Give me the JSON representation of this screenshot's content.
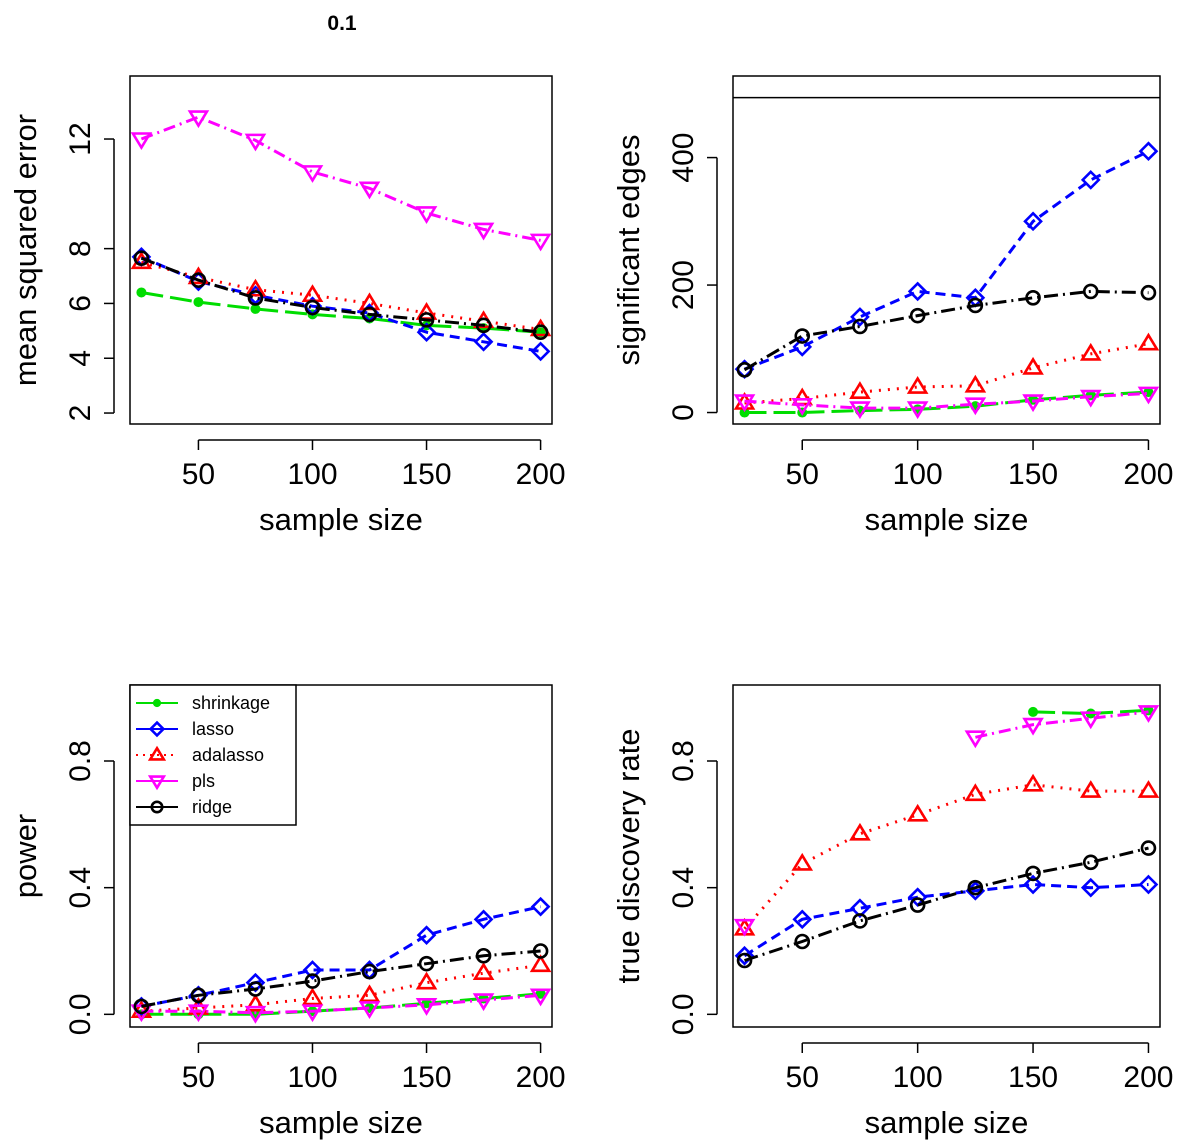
{
  "figure_title": "0.1",
  "colors": {
    "shrinkage": "#00dd00",
    "lasso": "#0000ff",
    "adalasso": "#ff0000",
    "pls": "#ff00ff",
    "ridge": "#000000"
  },
  "chart_data": [
    {
      "id": "mse",
      "type": "line",
      "title": "",
      "xlabel": "sample size",
      "ylabel": "mean squared error",
      "xlim": [
        20,
        205
      ],
      "ylim": [
        1.6,
        14.3
      ],
      "xticks": [
        50,
        100,
        150,
        200
      ],
      "yticks": [
        2,
        4,
        6,
        8,
        12
      ],
      "x": [
        25,
        50,
        75,
        100,
        125,
        150,
        175,
        200
      ],
      "series": [
        {
          "key": "shrinkage",
          "values": [
            6.4,
            6.05,
            5.8,
            5.6,
            5.45,
            5.2,
            5.1,
            4.95
          ]
        },
        {
          "key": "lasso",
          "values": [
            7.7,
            6.8,
            6.3,
            5.9,
            5.65,
            4.95,
            4.6,
            4.25
          ]
        },
        {
          "key": "adalasso",
          "values": [
            7.5,
            6.95,
            6.5,
            6.3,
            6.0,
            5.65,
            5.35,
            5.05
          ]
        },
        {
          "key": "pls",
          "values": [
            12.0,
            12.8,
            11.95,
            10.8,
            10.2,
            9.3,
            8.7,
            8.3
          ]
        },
        {
          "key": "ridge",
          "values": [
            7.65,
            6.85,
            6.2,
            5.85,
            5.6,
            5.4,
            5.2,
            4.95
          ]
        }
      ]
    },
    {
      "id": "edges",
      "type": "line",
      "title": "",
      "xlabel": "sample size",
      "ylabel": "significant edges",
      "xlim": [
        20,
        205
      ],
      "ylim": [
        -18,
        528
      ],
      "xticks": [
        50,
        100,
        150,
        200
      ],
      "yticks": [
        0,
        200,
        400
      ],
      "hlines": [
        494
      ],
      "x": [
        25,
        50,
        75,
        100,
        125,
        150,
        175,
        200
      ],
      "series": [
        {
          "key": "shrinkage",
          "values": [
            0,
            0,
            3,
            5,
            10,
            20,
            27,
            32
          ]
        },
        {
          "key": "lasso",
          "values": [
            68,
            103,
            150,
            190,
            180,
            300,
            365,
            410
          ]
        },
        {
          "key": "adalasso",
          "values": [
            15,
            22,
            32,
            40,
            42,
            70,
            92,
            108
          ]
        },
        {
          "key": "pls",
          "values": [
            18,
            12,
            7,
            7,
            13,
            18,
            25,
            30
          ]
        },
        {
          "key": "ridge",
          "values": [
            67,
            120,
            135,
            152,
            168,
            180,
            190,
            188
          ]
        }
      ]
    },
    {
      "id": "power",
      "type": "line",
      "title": "",
      "xlabel": "sample size",
      "ylabel": "power",
      "xlim": [
        20,
        205
      ],
      "ylim": [
        -0.04,
        1.04
      ],
      "xticks": [
        50,
        100,
        150,
        200
      ],
      "yticks": [
        0.0,
        0.4,
        0.8
      ],
      "ytick_labels": [
        "0.0",
        "0.4",
        "0.8"
      ],
      "x": [
        25,
        50,
        75,
        100,
        125,
        150,
        175,
        200
      ],
      "series": [
        {
          "key": "shrinkage",
          "values": [
            0.0,
            0.0,
            0.0,
            0.01,
            0.02,
            0.035,
            0.05,
            0.065
          ]
        },
        {
          "key": "lasso",
          "values": [
            0.025,
            0.06,
            0.1,
            0.14,
            0.14,
            0.25,
            0.3,
            0.34
          ]
        },
        {
          "key": "adalasso",
          "values": [
            0.01,
            0.02,
            0.03,
            0.05,
            0.06,
            0.1,
            0.13,
            0.155
          ]
        },
        {
          "key": "pls",
          "values": [
            0.01,
            0.01,
            0.005,
            0.01,
            0.02,
            0.03,
            0.045,
            0.06
          ]
        },
        {
          "key": "ridge",
          "values": [
            0.025,
            0.06,
            0.08,
            0.105,
            0.135,
            0.16,
            0.185,
            0.2
          ]
        }
      ],
      "legend": {
        "position": "top-left",
        "entries": [
          {
            "key": "shrinkage",
            "label": "shrinkage"
          },
          {
            "key": "lasso",
            "label": "lasso"
          },
          {
            "key": "adalasso",
            "label": "adalasso"
          },
          {
            "key": "pls",
            "label": "pls"
          },
          {
            "key": "ridge",
            "label": "ridge"
          }
        ]
      }
    },
    {
      "id": "tdr",
      "type": "line",
      "title": "",
      "xlabel": "sample size",
      "ylabel": "true discovery rate",
      "xlim": [
        20,
        205
      ],
      "ylim": [
        -0.04,
        1.04
      ],
      "xticks": [
        50,
        100,
        150,
        200
      ],
      "yticks": [
        0.0,
        0.4,
        0.8
      ],
      "ytick_labels": [
        "0.0",
        "0.4",
        "0.8"
      ],
      "x": [
        25,
        50,
        75,
        100,
        125,
        150,
        175,
        200
      ],
      "series": [
        {
          "key": "shrinkage",
          "values": [
            null,
            null,
            null,
            null,
            null,
            0.955,
            0.95,
            0.96
          ]
        },
        {
          "key": "lasso",
          "values": [
            0.185,
            0.3,
            0.335,
            0.37,
            0.39,
            0.41,
            0.4,
            0.41
          ]
        },
        {
          "key": "adalasso",
          "values": [
            0.27,
            0.475,
            0.57,
            0.63,
            0.695,
            0.725,
            0.705,
            0.705
          ]
        },
        {
          "key": "pls",
          "values": [
            0.28,
            null,
            null,
            null,
            0.875,
            0.915,
            0.935,
            0.955
          ]
        },
        {
          "key": "ridge",
          "values": [
            0.17,
            0.23,
            0.295,
            0.345,
            0.4,
            0.445,
            0.48,
            0.525
          ]
        }
      ]
    }
  ]
}
